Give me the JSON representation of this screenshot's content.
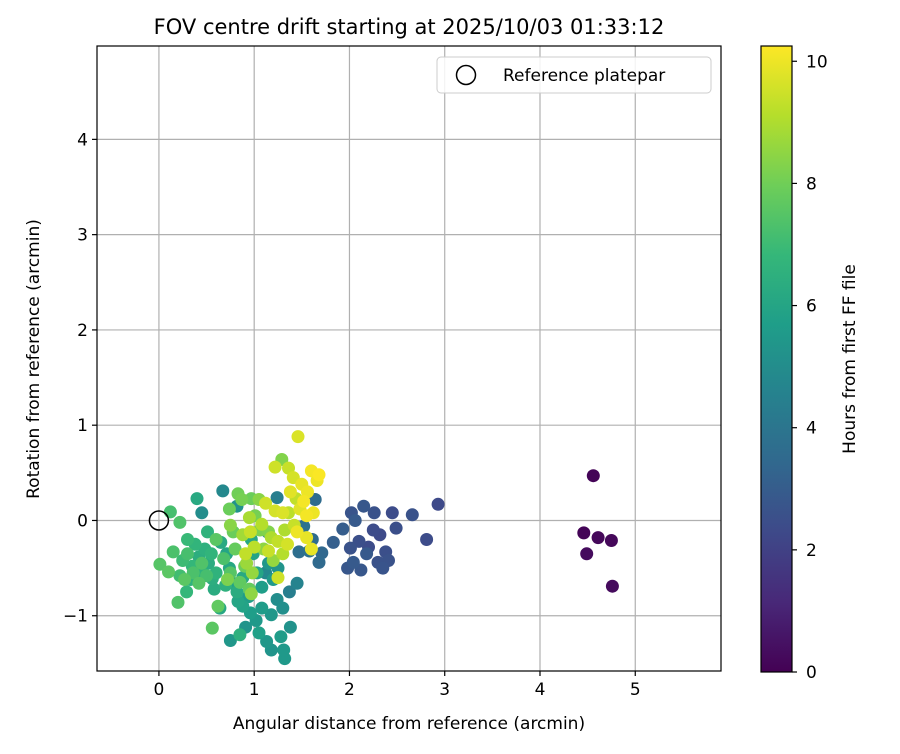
{
  "chart_data": {
    "type": "scatter",
    "title": "FOV centre drift starting at 2025/10/03 01:33:12",
    "xlabel": "Angular distance from reference (arcmin)",
    "ylabel": "Rotation from reference (arcmin)",
    "xlim": [
      -0.65,
      5.9
    ],
    "ylim": [
      -1.58,
      4.98
    ],
    "xticks": [
      0,
      1,
      2,
      3,
      4,
      5
    ],
    "yticks": [
      -1,
      0,
      1,
      2,
      3,
      4
    ],
    "xtick_labels": [
      "0",
      "1",
      "2",
      "3",
      "4",
      "5"
    ],
    "ytick_labels": [
      "−1",
      "0",
      "1",
      "2",
      "3",
      "4"
    ],
    "grid": true,
    "legend": {
      "position": "top-right",
      "label": "Reference platepar"
    },
    "reference_point": {
      "x": 0,
      "y": 0
    },
    "colorbar": {
      "label": "Hours from first FF file",
      "min": 0,
      "max": 10.25,
      "ticks": [
        0,
        2,
        4,
        6,
        8,
        10
      ],
      "tick_labels": [
        "0",
        "2",
        "4",
        "6",
        "8",
        "10"
      ],
      "colormap": "viridis"
    },
    "points": [
      {
        "x": 4.56,
        "y": 0.47,
        "h": 0.1
      },
      {
        "x": 4.46,
        "y": -0.13,
        "h": 0.1
      },
      {
        "x": 4.61,
        "y": -0.18,
        "h": 0.2
      },
      {
        "x": 4.75,
        "y": -0.21,
        "h": 0.2
      },
      {
        "x": 4.49,
        "y": -0.35,
        "h": 0.3
      },
      {
        "x": 4.76,
        "y": -0.69,
        "h": 0.3
      },
      {
        "x": 2.93,
        "y": 0.17,
        "h": 2.3
      },
      {
        "x": 2.81,
        "y": -0.2,
        "h": 2.4
      },
      {
        "x": 2.66,
        "y": 0.06,
        "h": 2.6
      },
      {
        "x": 2.49,
        "y": -0.08,
        "h": 2.5
      },
      {
        "x": 2.45,
        "y": 0.08,
        "h": 2.4
      },
      {
        "x": 2.38,
        "y": -0.33,
        "h": 2.5
      },
      {
        "x": 2.35,
        "y": -0.5,
        "h": 2.7
      },
      {
        "x": 2.3,
        "y": -0.44,
        "h": 2.6
      },
      {
        "x": 2.26,
        "y": 0.08,
        "h": 2.6
      },
      {
        "x": 2.25,
        "y": -0.1,
        "h": 2.4
      },
      {
        "x": 2.2,
        "y": -0.28,
        "h": 2.4
      },
      {
        "x": 2.15,
        "y": 0.15,
        "h": 2.8
      },
      {
        "x": 2.12,
        "y": -0.52,
        "h": 2.8
      },
      {
        "x": 2.1,
        "y": -0.22,
        "h": 2.5
      },
      {
        "x": 2.06,
        "y": 0.0,
        "h": 2.9
      },
      {
        "x": 2.04,
        "y": -0.44,
        "h": 2.9
      },
      {
        "x": 2.02,
        "y": 0.08,
        "h": 2.7
      },
      {
        "x": 2.01,
        "y": -0.29,
        "h": 2.6
      },
      {
        "x": 1.98,
        "y": -0.5,
        "h": 2.8
      },
      {
        "x": 1.93,
        "y": -0.09,
        "h": 3.0
      },
      {
        "x": 1.83,
        "y": -0.23,
        "h": 3.1
      },
      {
        "x": 2.32,
        "y": -0.15,
        "h": 2.3
      },
      {
        "x": 2.41,
        "y": -0.42,
        "h": 2.6
      },
      {
        "x": 2.18,
        "y": -0.35,
        "h": 2.9
      },
      {
        "x": 1.71,
        "y": -0.34,
        "h": 3.4
      },
      {
        "x": 1.68,
        "y": -0.44,
        "h": 3.5
      },
      {
        "x": 1.61,
        "y": -0.2,
        "h": 3.6
      },
      {
        "x": 1.58,
        "y": -0.32,
        "h": 3.8
      },
      {
        "x": 1.52,
        "y": -0.06,
        "h": 3.9
      },
      {
        "x": 1.47,
        "y": -0.33,
        "h": 3.7
      },
      {
        "x": 1.45,
        "y": -0.66,
        "h": 4.6
      },
      {
        "x": 1.37,
        "y": -0.75,
        "h": 4.4
      },
      {
        "x": 1.64,
        "y": 0.22,
        "h": 3.6
      },
      {
        "x": 1.24,
        "y": 0.24,
        "h": 4.4
      },
      {
        "x": 1.14,
        "y": -0.12,
        "h": 4.6
      },
      {
        "x": 1.12,
        "y": -0.55,
        "h": 4.8
      },
      {
        "x": 0.67,
        "y": 0.31,
        "h": 4.8
      },
      {
        "x": 0.45,
        "y": 0.08,
        "h": 5.0
      },
      {
        "x": 0.82,
        "y": 0.15,
        "h": 5.2
      },
      {
        "x": 0.75,
        "y": -1.26,
        "h": 5.4
      },
      {
        "x": 0.91,
        "y": -1.12,
        "h": 5.3
      },
      {
        "x": 1.02,
        "y": -1.05,
        "h": 5.5
      },
      {
        "x": 1.13,
        "y": -1.27,
        "h": 5.4
      },
      {
        "x": 1.18,
        "y": -1.36,
        "h": 5.3
      },
      {
        "x": 1.32,
        "y": -1.45,
        "h": 5.5
      },
      {
        "x": 1.31,
        "y": -1.36,
        "h": 5.5
      },
      {
        "x": 1.28,
        "y": -1.22,
        "h": 5.6
      },
      {
        "x": 1.38,
        "y": -1.12,
        "h": 5.2
      },
      {
        "x": 1.3,
        "y": -0.92,
        "h": 5.1
      },
      {
        "x": 1.24,
        "y": -0.83,
        "h": 5.0
      },
      {
        "x": 1.18,
        "y": -0.99,
        "h": 5.4
      },
      {
        "x": 1.08,
        "y": -0.92,
        "h": 5.6
      },
      {
        "x": 1.05,
        "y": -1.18,
        "h": 5.8
      },
      {
        "x": 0.96,
        "y": -0.97,
        "h": 5.7
      },
      {
        "x": 0.94,
        "y": -0.8,
        "h": 5.6
      },
      {
        "x": 0.88,
        "y": -0.9,
        "h": 5.9
      },
      {
        "x": 0.83,
        "y": -0.85,
        "h": 6.0
      },
      {
        "x": 0.78,
        "y": -0.66,
        "h": 5.9
      },
      {
        "x": 0.74,
        "y": -0.5,
        "h": 6.1
      },
      {
        "x": 0.71,
        "y": -0.35,
        "h": 6.0
      },
      {
        "x": 0.65,
        "y": -0.23,
        "h": 6.2
      },
      {
        "x": 0.64,
        "y": -0.92,
        "h": 6.1
      },
      {
        "x": 0.58,
        "y": -0.72,
        "h": 6.3
      },
      {
        "x": 0.56,
        "y": -0.61,
        "h": 6.4
      },
      {
        "x": 0.52,
        "y": -0.45,
        "h": 6.3
      },
      {
        "x": 0.48,
        "y": -0.3,
        "h": 6.5
      },
      {
        "x": 0.45,
        "y": -0.55,
        "h": 6.6
      },
      {
        "x": 0.42,
        "y": -0.38,
        "h": 6.4
      },
      {
        "x": 0.38,
        "y": -0.25,
        "h": 6.7
      },
      {
        "x": 0.35,
        "y": -0.48,
        "h": 6.8
      },
      {
        "x": 0.33,
        "y": -0.62,
        "h": 6.6
      },
      {
        "x": 0.3,
        "y": -0.2,
        "h": 6.9
      },
      {
        "x": 0.29,
        "y": -0.75,
        "h": 6.8
      },
      {
        "x": 0.25,
        "y": -0.42,
        "h": 7.0
      },
      {
        "x": 0.22,
        "y": -0.58,
        "h": 7.1
      },
      {
        "x": 0.4,
        "y": 0.23,
        "h": 6.2
      },
      {
        "x": 0.97,
        "y": -0.2,
        "h": 6.1
      },
      {
        "x": 0.99,
        "y": -0.35,
        "h": 5.9
      },
      {
        "x": 1.03,
        "y": -0.55,
        "h": 6.0
      },
      {
        "x": 1.08,
        "y": -0.7,
        "h": 5.7
      },
      {
        "x": 1.2,
        "y": -0.62,
        "h": 5.5
      },
      {
        "x": 1.25,
        "y": -0.5,
        "h": 5.3
      },
      {
        "x": 1.15,
        "y": -0.45,
        "h": 5.4
      },
      {
        "x": 0.88,
        "y": -0.6,
        "h": 6.2
      },
      {
        "x": 0.82,
        "y": -0.75,
        "h": 6.3
      },
      {
        "x": 0.7,
        "y": -0.68,
        "h": 6.5
      },
      {
        "x": 0.6,
        "y": -0.55,
        "h": 6.6
      },
      {
        "x": 0.85,
        "y": -1.2,
        "h": 6.5
      },
      {
        "x": 0.55,
        "y": -0.35,
        "h": 6.7
      },
      {
        "x": 0.51,
        "y": -0.12,
        "h": 6.6
      },
      {
        "x": 0.12,
        "y": 0.09,
        "h": 7.2
      },
      {
        "x": 0.22,
        "y": -0.02,
        "h": 7.4
      },
      {
        "x": 0.15,
        "y": -0.33,
        "h": 7.3
      },
      {
        "x": 0.01,
        "y": -0.46,
        "h": 7.5
      },
      {
        "x": 0.1,
        "y": -0.54,
        "h": 7.6
      },
      {
        "x": 0.2,
        "y": -0.86,
        "h": 7.4
      },
      {
        "x": 0.56,
        "y": -1.13,
        "h": 7.6
      },
      {
        "x": 0.62,
        "y": -0.9,
        "h": 7.7
      },
      {
        "x": 0.42,
        "y": -0.66,
        "h": 7.5
      },
      {
        "x": 0.36,
        "y": -0.55,
        "h": 7.3
      },
      {
        "x": 0.3,
        "y": -0.35,
        "h": 7.2
      },
      {
        "x": 0.27,
        "y": -0.62,
        "h": 7.6
      },
      {
        "x": 0.45,
        "y": -0.45,
        "h": 7.4
      },
      {
        "x": 0.5,
        "y": -0.58,
        "h": 7.2
      },
      {
        "x": 0.6,
        "y": -0.2,
        "h": 7.6
      },
      {
        "x": 0.68,
        "y": -0.4,
        "h": 7.3
      },
      {
        "x": 0.75,
        "y": -0.55,
        "h": 7.5
      },
      {
        "x": 0.8,
        "y": -0.3,
        "h": 7.8
      },
      {
        "x": 0.85,
        "y": -0.65,
        "h": 7.7
      },
      {
        "x": 0.9,
        "y": -0.48,
        "h": 7.9
      },
      {
        "x": 0.95,
        "y": -0.72,
        "h": 7.8
      },
      {
        "x": 0.78,
        "y": -0.12,
        "h": 7.9
      },
      {
        "x": 0.83,
        "y": 0.28,
        "h": 8.0
      },
      {
        "x": 0.97,
        "y": 0.23,
        "h": 7.9
      },
      {
        "x": 1.01,
        "y": 0.05,
        "h": 8.1
      },
      {
        "x": 1.06,
        "y": -0.1,
        "h": 8.2
      },
      {
        "x": 0.72,
        "y": -0.62,
        "h": 8.2
      },
      {
        "x": 0.74,
        "y": 0.12,
        "h": 7.9
      },
      {
        "x": 0.87,
        "y": 0.22,
        "h": 8.1
      },
      {
        "x": 1.05,
        "y": 0.22,
        "h": 8.4
      },
      {
        "x": 1.29,
        "y": 0.64,
        "h": 8.3
      },
      {
        "x": 0.97,
        "y": -0.77,
        "h": 8.5
      },
      {
        "x": 1.1,
        "y": -0.3,
        "h": 8.5
      },
      {
        "x": 1.2,
        "y": -0.42,
        "h": 8.6
      },
      {
        "x": 1.15,
        "y": -0.12,
        "h": 8.3
      },
      {
        "x": 0.92,
        "y": -0.45,
        "h": 8.7
      },
      {
        "x": 0.75,
        "y": -0.05,
        "h": 8.4
      },
      {
        "x": 0.98,
        "y": -0.55,
        "h": 8.6
      },
      {
        "x": 0.88,
        "y": -0.15,
        "h": 8.8
      },
      {
        "x": 0.95,
        "y": 0.03,
        "h": 8.9
      },
      {
        "x": 1.22,
        "y": 0.56,
        "h": 9.5
      },
      {
        "x": 1.36,
        "y": 0.55,
        "h": 9.4
      },
      {
        "x": 1.46,
        "y": 0.88,
        "h": 9.7
      },
      {
        "x": 1.41,
        "y": 0.45,
        "h": 9.6
      },
      {
        "x": 1.44,
        "y": 0.23,
        "h": 9.3
      },
      {
        "x": 1.36,
        "y": 0.08,
        "h": 9.2
      },
      {
        "x": 1.32,
        "y": -0.1,
        "h": 9.0
      },
      {
        "x": 1.25,
        "y": -0.22,
        "h": 9.3
      },
      {
        "x": 1.15,
        "y": -0.32,
        "h": 9.4
      },
      {
        "x": 1.08,
        "y": -0.04,
        "h": 9.1
      },
      {
        "x": 1.0,
        "y": -0.28,
        "h": 9.2
      },
      {
        "x": 0.96,
        "y": -0.12,
        "h": 9.4
      },
      {
        "x": 0.91,
        "y": -0.35,
        "h": 9.3
      },
      {
        "x": 1.25,
        "y": -0.6,
        "h": 9.5
      },
      {
        "x": 1.3,
        "y": -0.35,
        "h": 9.1
      },
      {
        "x": 1.22,
        "y": 0.1,
        "h": 9.6
      },
      {
        "x": 1.18,
        "y": -0.18,
        "h": 9.0
      },
      {
        "x": 1.42,
        "y": -0.05,
        "h": 9.4
      },
      {
        "x": 1.48,
        "y": 0.12,
        "h": 9.8
      },
      {
        "x": 1.5,
        "y": 0.38,
        "h": 9.9
      },
      {
        "x": 1.56,
        "y": 0.3,
        "h": 10.0
      },
      {
        "x": 1.52,
        "y": 0.2,
        "h": 10.1
      },
      {
        "x": 1.6,
        "y": 0.52,
        "h": 10.1
      },
      {
        "x": 1.68,
        "y": 0.48,
        "h": 10.2
      },
      {
        "x": 1.66,
        "y": 0.42,
        "h": 10.0
      },
      {
        "x": 1.55,
        "y": 0.05,
        "h": 10.1
      },
      {
        "x": 1.62,
        "y": 0.08,
        "h": 10.0
      },
      {
        "x": 1.45,
        "y": -0.12,
        "h": 10.0
      },
      {
        "x": 1.55,
        "y": -0.18,
        "h": 9.9
      },
      {
        "x": 1.38,
        "y": 0.3,
        "h": 9.8
      },
      {
        "x": 1.3,
        "y": 0.08,
        "h": 9.7
      },
      {
        "x": 1.12,
        "y": 0.18,
        "h": 9.5
      },
      {
        "x": 1.35,
        "y": -0.25,
        "h": 9.6
      },
      {
        "x": 1.6,
        "y": -0.3,
        "h": 9.9
      }
    ]
  }
}
